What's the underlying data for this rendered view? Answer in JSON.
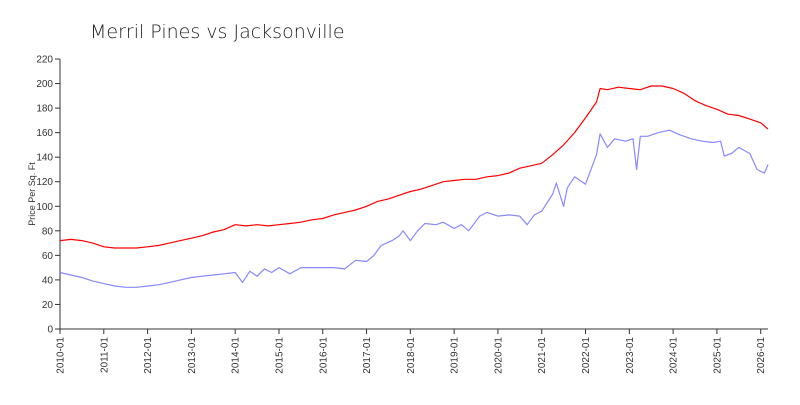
{
  "chart_data": {
    "type": "line",
    "title": "Merril Pines vs Jacksonville",
    "xlabel": "",
    "ylabel": "Price Per Sq. Ft",
    "ylim": [
      0,
      220
    ],
    "yticks": [
      0,
      20,
      40,
      60,
      80,
      100,
      120,
      140,
      160,
      180,
      200,
      220
    ],
    "xticks": [
      "2010-01",
      "2011-01",
      "2012-01",
      "2013-01",
      "2014-01",
      "2015-01",
      "2016-01",
      "2017-01",
      "2018-01",
      "2019-01",
      "2020-01",
      "2021-01",
      "2022-01",
      "2023-01",
      "2024-01",
      "2025-01",
      "2026-01"
    ],
    "xlim": [
      "2010-01",
      "2026-03"
    ],
    "grid": false,
    "legend": "none",
    "series": [
      {
        "color": "#ff0000",
        "points": [
          [
            "2010-01",
            72
          ],
          [
            "2010-04",
            73
          ],
          [
            "2010-07",
            72
          ],
          [
            "2010-10",
            70
          ],
          [
            "2011-01",
            67
          ],
          [
            "2011-04",
            66
          ],
          [
            "2011-07",
            66
          ],
          [
            "2011-10",
            66
          ],
          [
            "2012-01",
            67
          ],
          [
            "2012-04",
            68
          ],
          [
            "2012-07",
            70
          ],
          [
            "2012-10",
            72
          ],
          [
            "2013-01",
            74
          ],
          [
            "2013-04",
            76
          ],
          [
            "2013-07",
            79
          ],
          [
            "2013-10",
            81
          ],
          [
            "2014-01",
            85
          ],
          [
            "2014-04",
            84
          ],
          [
            "2014-07",
            85
          ],
          [
            "2014-10",
            84
          ],
          [
            "2015-01",
            85
          ],
          [
            "2015-04",
            86
          ],
          [
            "2015-07",
            87
          ],
          [
            "2015-10",
            89
          ],
          [
            "2016-01",
            90
          ],
          [
            "2016-04",
            93
          ],
          [
            "2016-07",
            95
          ],
          [
            "2016-10",
            97
          ],
          [
            "2017-01",
            100
          ],
          [
            "2017-04",
            104
          ],
          [
            "2017-07",
            106
          ],
          [
            "2017-10",
            109
          ],
          [
            "2018-01",
            112
          ],
          [
            "2018-04",
            114
          ],
          [
            "2018-07",
            117
          ],
          [
            "2018-10",
            120
          ],
          [
            "2019-01",
            121
          ],
          [
            "2019-04",
            122
          ],
          [
            "2019-07",
            122
          ],
          [
            "2019-10",
            124
          ],
          [
            "2020-01",
            125
          ],
          [
            "2020-04",
            127
          ],
          [
            "2020-07",
            131
          ],
          [
            "2020-10",
            133
          ],
          [
            "2021-01",
            135
          ],
          [
            "2021-04",
            142
          ],
          [
            "2021-07",
            150
          ],
          [
            "2021-10",
            160
          ],
          [
            "2022-01",
            172
          ],
          [
            "2022-04",
            185
          ],
          [
            "2022-05",
            196
          ],
          [
            "2022-07",
            195
          ],
          [
            "2022-10",
            197
          ],
          [
            "2023-01",
            196
          ],
          [
            "2023-04",
            195
          ],
          [
            "2023-07",
            198
          ],
          [
            "2023-10",
            198
          ],
          [
            "2024-01",
            196
          ],
          [
            "2024-04",
            192
          ],
          [
            "2024-07",
            186
          ],
          [
            "2024-10",
            182
          ],
          [
            "2025-01",
            179
          ],
          [
            "2025-04",
            175
          ],
          [
            "2025-07",
            174
          ],
          [
            "2025-10",
            171
          ],
          [
            "2026-01",
            168
          ],
          [
            "2026-03",
            163
          ]
        ]
      },
      {
        "color": "#8888ff",
        "points": [
          [
            "2010-01",
            46
          ],
          [
            "2010-04",
            44
          ],
          [
            "2010-07",
            42
          ],
          [
            "2010-10",
            39
          ],
          [
            "2011-01",
            37
          ],
          [
            "2011-04",
            35
          ],
          [
            "2011-07",
            34
          ],
          [
            "2011-10",
            34
          ],
          [
            "2012-01",
            35
          ],
          [
            "2012-04",
            36
          ],
          [
            "2012-07",
            38
          ],
          [
            "2012-10",
            40
          ],
          [
            "2013-01",
            42
          ],
          [
            "2013-04",
            43
          ],
          [
            "2013-07",
            44
          ],
          [
            "2013-10",
            45
          ],
          [
            "2014-01",
            46
          ],
          [
            "2014-03",
            38
          ],
          [
            "2014-05",
            47
          ],
          [
            "2014-07",
            43
          ],
          [
            "2014-09",
            49
          ],
          [
            "2014-11",
            46
          ],
          [
            "2015-01",
            50
          ],
          [
            "2015-04",
            45
          ],
          [
            "2015-07",
            50
          ],
          [
            "2015-10",
            50
          ],
          [
            "2016-01",
            50
          ],
          [
            "2016-04",
            50
          ],
          [
            "2016-07",
            49
          ],
          [
            "2016-10",
            56
          ],
          [
            "2017-01",
            55
          ],
          [
            "2017-03",
            60
          ],
          [
            "2017-05",
            68
          ],
          [
            "2017-08",
            72
          ],
          [
            "2017-10",
            76
          ],
          [
            "2017-11",
            80
          ],
          [
            "2018-01",
            72
          ],
          [
            "2018-03",
            80
          ],
          [
            "2018-05",
            86
          ],
          [
            "2018-08",
            85
          ],
          [
            "2018-10",
            87
          ],
          [
            "2019-01",
            82
          ],
          [
            "2019-03",
            85
          ],
          [
            "2019-05",
            80
          ],
          [
            "2019-08",
            92
          ],
          [
            "2019-10",
            95
          ],
          [
            "2020-01",
            92
          ],
          [
            "2020-04",
            93
          ],
          [
            "2020-07",
            92
          ],
          [
            "2020-09",
            85
          ],
          [
            "2020-11",
            93
          ],
          [
            "2021-01",
            96
          ],
          [
            "2021-04",
            110
          ],
          [
            "2021-05",
            119
          ],
          [
            "2021-07",
            100
          ],
          [
            "2021-08",
            115
          ],
          [
            "2021-10",
            124
          ],
          [
            "2022-01",
            118
          ],
          [
            "2022-04",
            142
          ],
          [
            "2022-05",
            159
          ],
          [
            "2022-07",
            148
          ],
          [
            "2022-09",
            155
          ],
          [
            "2022-12",
            153
          ],
          [
            "2023-02",
            155
          ],
          [
            "2023-03",
            130
          ],
          [
            "2023-04",
            157
          ],
          [
            "2023-06",
            157
          ],
          [
            "2023-09",
            160
          ],
          [
            "2023-12",
            162
          ],
          [
            "2024-03",
            158
          ],
          [
            "2024-06",
            155
          ],
          [
            "2024-09",
            153
          ],
          [
            "2024-12",
            152
          ],
          [
            "2025-02",
            153
          ],
          [
            "2025-03",
            141
          ],
          [
            "2025-05",
            143
          ],
          [
            "2025-07",
            148
          ],
          [
            "2025-10",
            143
          ],
          [
            "2025-12",
            130
          ],
          [
            "2026-02",
            127
          ],
          [
            "2026-03",
            134
          ]
        ]
      }
    ]
  }
}
